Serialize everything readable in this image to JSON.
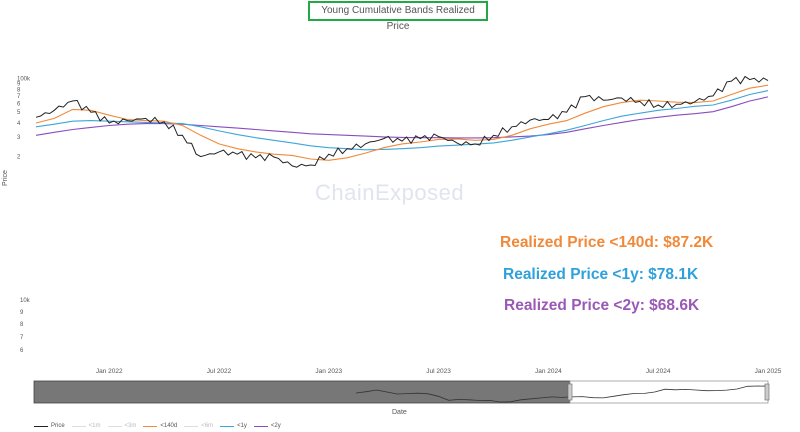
{
  "chart_data": {
    "type": "line",
    "title": "Young Cumulative Bands Realized Price",
    "xlabel": "Date",
    "ylabel": "Price",
    "yscale": "log",
    "ylim": [
      1500,
      110000
    ],
    "x_tick_labels": [
      "Jan 2022",
      "Jul 2022",
      "Jan 2023",
      "Jul 2023",
      "Jan 2024",
      "Jul 2024",
      "Jan 2025"
    ],
    "y_tick_labels": [
      "100k",
      "9",
      "8",
      "7",
      "6",
      "5",
      "4",
      "3",
      "2"
    ],
    "lower_panel_y_tick_labels": [
      "10k",
      "9",
      "8",
      "7",
      "6"
    ],
    "x": [
      "2021-09",
      "2021-10",
      "2021-11",
      "2021-12",
      "2022-01",
      "2022-02",
      "2022-03",
      "2022-04",
      "2022-05",
      "2022-06",
      "2022-07",
      "2022-08",
      "2022-09",
      "2022-10",
      "2022-11",
      "2022-12",
      "2023-01",
      "2023-02",
      "2023-03",
      "2023-04",
      "2023-05",
      "2023-06",
      "2023-07",
      "2023-08",
      "2023-09",
      "2023-10",
      "2023-11",
      "2023-12",
      "2024-01",
      "2024-02",
      "2024-03",
      "2024-04",
      "2024-05",
      "2024-06",
      "2024-07",
      "2024-08",
      "2024-09",
      "2024-10",
      "2024-11",
      "2024-12",
      "2025-01"
    ],
    "series": [
      {
        "name": "Price",
        "color": "#222222",
        "values": [
          45000,
          52000,
          63000,
          50000,
          40000,
          42000,
          44000,
          41000,
          31000,
          20000,
          22000,
          21000,
          19500,
          19800,
          16500,
          16800,
          21000,
          23500,
          26000,
          29000,
          27500,
          29000,
          30200,
          26500,
          26000,
          31000,
          37000,
          42500,
          43000,
          50000,
          69000,
          64000,
          67000,
          62500,
          58000,
          59000,
          62000,
          70000,
          95000,
          98000,
          96000
        ]
      },
      {
        "name": "<140d",
        "color": "#f08a3a",
        "values": [
          40000,
          44000,
          53000,
          52000,
          47000,
          43000,
          42000,
          41500,
          38000,
          31000,
          26000,
          23500,
          22000,
          21000,
          20500,
          19000,
          18500,
          19500,
          21500,
          24000,
          26000,
          27000,
          28500,
          28800,
          28000,
          28500,
          31000,
          35500,
          39000,
          42000,
          49000,
          56000,
          61000,
          64000,
          63000,
          61500,
          61000,
          63000,
          72000,
          82000,
          87200
        ]
      },
      {
        "name": "<1y",
        "color": "#3da6d9",
        "values": [
          37000,
          39000,
          41500,
          42000,
          41500,
          41000,
          40500,
          40000,
          39500,
          37000,
          34000,
          31500,
          29500,
          28000,
          26500,
          25000,
          24000,
          23500,
          23000,
          23200,
          23500,
          24000,
          24800,
          25300,
          25800,
          26500,
          28000,
          30000,
          32000,
          34500,
          38000,
          42000,
          46000,
          49000,
          52000,
          54000,
          56500,
          58000,
          64000,
          72000,
          78100
        ]
      },
      {
        "name": "<2y",
        "color": "#8a4cc0",
        "values": [
          31000,
          33000,
          35000,
          36500,
          38000,
          39000,
          39500,
          39500,
          39000,
          38000,
          37000,
          36000,
          35000,
          34000,
          33000,
          32000,
          31500,
          31000,
          30500,
          30000,
          29700,
          29500,
          29500,
          29400,
          29400,
          29500,
          30000,
          30500,
          31500,
          33000,
          35500,
          38000,
          40500,
          43000,
          45000,
          47000,
          48500,
          50500,
          56000,
          63000,
          68600
        ]
      }
    ],
    "legend": [
      "Price",
      "<1m",
      "<3m",
      "<140d",
      "<6m",
      "<1y",
      "<2y"
    ],
    "legend_placement": "bottom-left",
    "annotations": [
      {
        "text": "Realized Price <140d: $87.2K",
        "color": "#f08a3a"
      },
      {
        "text": "Realized Price <1y: $78.1K",
        "color": "#2ea1dc"
      },
      {
        "text": "Realized Price <2y: $68.6K",
        "color": "#9b59b6"
      }
    ],
    "grid": false
  },
  "watermark": "ChainExposed"
}
